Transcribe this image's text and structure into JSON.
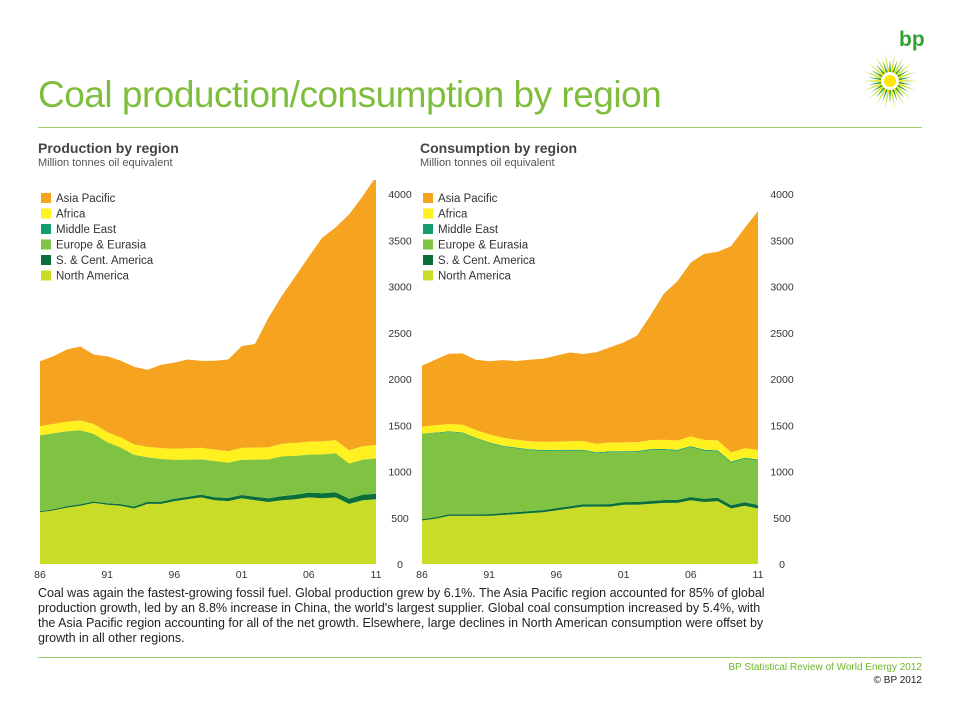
{
  "title": "Coal production/consumption by region",
  "logo_text": "bp",
  "caption": "Coal was again the fastest-growing fossil fuel. Global production grew by 6.1%. The Asia Pacific region accounted for 85% of global production growth, led by an 8.8% increase in China, the world's largest supplier. Global coal consumption increased by 5.4%, with the Asia Pacific region accounting for all of the net growth. Elsewhere, large declines in North American consumption were offset by growth in all other regions.",
  "footer": {
    "source": "BP Statistical Review of World Energy 2012",
    "copyright": "© BP 2012"
  },
  "colors": {
    "Asia Pacific": "#f6a31f",
    "Africa": "#fff01f",
    "Middle East": "#149e6c",
    "Europe & Eurasia": "#80c241",
    "S. & Cent. America": "#0a6e3a",
    "North America": "#c9dd28",
    "accent": "#7ebe3c"
  },
  "chart_data": [
    {
      "type": "area",
      "title": "Production by region",
      "subtitle": "Million tonnes oil equivalent",
      "x": [
        1986,
        1987,
        1988,
        1989,
        1990,
        1991,
        1992,
        1993,
        1994,
        1995,
        1996,
        1997,
        1998,
        1999,
        2000,
        2001,
        2002,
        2003,
        2004,
        2005,
        2006,
        2007,
        2008,
        2009,
        2010,
        2011
      ],
      "xticks": [
        "86",
        "91",
        "96",
        "01",
        "06",
        "11"
      ],
      "yticks": [
        0,
        500,
        1000,
        1500,
        2000,
        2500,
        3000,
        3500,
        4000
      ],
      "ylim": [
        0,
        4000
      ],
      "stacked": true,
      "legend": "top-left",
      "series": [
        {
          "name": "North America",
          "values": [
            560,
            580,
            610,
            630,
            660,
            640,
            630,
            600,
            650,
            650,
            680,
            700,
            720,
            690,
            680,
            710,
            690,
            670,
            690,
            700,
            720,
            710,
            720,
            650,
            690,
            700
          ]
        },
        {
          "name": "S. & Cent. America",
          "values": [
            10,
            12,
            14,
            15,
            16,
            17,
            18,
            20,
            22,
            24,
            26,
            28,
            30,
            32,
            34,
            36,
            38,
            40,
            44,
            48,
            52,
            54,
            56,
            56,
            58,
            60
          ]
        },
        {
          "name": "Europe & Eurasia",
          "values": [
            820,
            820,
            810,
            800,
            730,
            660,
            610,
            560,
            480,
            460,
            420,
            400,
            380,
            390,
            380,
            380,
            400,
            420,
            430,
            420,
            410,
            420,
            420,
            380,
            380,
            380
          ]
        },
        {
          "name": "Middle East",
          "values": [
            1,
            1,
            1,
            1,
            1,
            1,
            1,
            1,
            1,
            1,
            1,
            1,
            1,
            1,
            1,
            1,
            1,
            1,
            1,
            1,
            1,
            1,
            1,
            1,
            1,
            1
          ]
        },
        {
          "name": "Africa",
          "values": [
            100,
            102,
            104,
            105,
            107,
            108,
            110,
            112,
            115,
            118,
            120,
            122,
            125,
            125,
            126,
            128,
            130,
            132,
            136,
            140,
            140,
            141,
            142,
            143,
            145,
            147
          ]
        },
        {
          "name": "Asia Pacific",
          "values": [
            700,
            730,
            780,
            800,
            750,
            820,
            830,
            840,
            830,
            900,
            930,
            960,
            940,
            960,
            990,
            1100,
            1120,
            1400,
            1600,
            1800,
            2000,
            2200,
            2300,
            2550,
            2700,
            2900
          ]
        }
      ]
    },
    {
      "type": "area",
      "title": "Consumption by region",
      "subtitle": "Million tonnes oil equivalent",
      "x": [
        1986,
        1987,
        1988,
        1989,
        1990,
        1991,
        1992,
        1993,
        1994,
        1995,
        1996,
        1997,
        1998,
        1999,
        2000,
        2001,
        2002,
        2003,
        2004,
        2005,
        2006,
        2007,
        2008,
        2009,
        2010,
        2011
      ],
      "xticks": [
        "86",
        "91",
        "96",
        "01",
        "06",
        "11"
      ],
      "yticks": [
        0,
        500,
        1000,
        1500,
        2000,
        2500,
        3000,
        3500,
        4000
      ],
      "ylim": [
        0,
        4000
      ],
      "stacked": true,
      "legend": "top-left",
      "series": [
        {
          "name": "North America",
          "values": [
            470,
            490,
            520,
            520,
            520,
            520,
            530,
            540,
            550,
            560,
            580,
            600,
            620,
            620,
            620,
            640,
            640,
            650,
            660,
            660,
            690,
            670,
            680,
            600,
            630,
            600
          ]
        },
        {
          "name": "S. & Cent. America",
          "values": [
            15,
            16,
            17,
            18,
            18,
            19,
            20,
            21,
            22,
            23,
            24,
            25,
            26,
            27,
            28,
            29,
            30,
            31,
            32,
            33,
            34,
            35,
            36,
            35,
            37,
            38
          ]
        },
        {
          "name": "Europe & Eurasia",
          "values": [
            920,
            910,
            890,
            880,
            820,
            770,
            720,
            690,
            660,
            640,
            620,
            600,
            580,
            550,
            560,
            540,
            540,
            550,
            540,
            530,
            540,
            520,
            500,
            460,
            470,
            480
          ]
        },
        {
          "name": "Middle East",
          "values": [
            5,
            6,
            6,
            7,
            7,
            8,
            8,
            8,
            9,
            9,
            9,
            10,
            10,
            10,
            10,
            10,
            11,
            11,
            11,
            11,
            11,
            11,
            12,
            12,
            12,
            12
          ]
        },
        {
          "name": "Africa",
          "values": [
            75,
            78,
            80,
            82,
            84,
            85,
            86,
            86,
            87,
            88,
            90,
            92,
            94,
            94,
            95,
            96,
            97,
            98,
            100,
            102,
            104,
            106,
            108,
            100,
            102,
            105
          ]
        },
        {
          "name": "Asia Pacific",
          "values": [
            660,
            710,
            760,
            770,
            760,
            790,
            840,
            850,
            880,
            900,
            930,
            960,
            940,
            990,
            1030,
            1080,
            1150,
            1350,
            1580,
            1720,
            1880,
            2010,
            2040,
            2230,
            2380,
            2580
          ]
        }
      ]
    }
  ]
}
